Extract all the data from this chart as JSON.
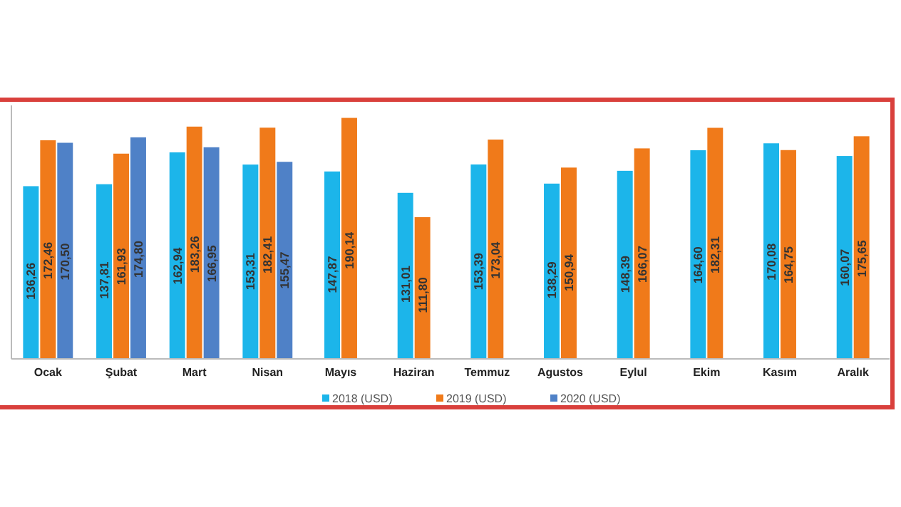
{
  "chart_data": {
    "type": "bar",
    "categories": [
      "Ocak",
      "Şubat",
      "Mart",
      "Nisan",
      "Mayıs",
      "Haziran",
      "Temmuz",
      "Agustos",
      "Eylul",
      "Ekim",
      "Kasım",
      "Aralık"
    ],
    "series": [
      {
        "name": "2018 (USD)",
        "color": "#1cb5ea",
        "values": [
          136.26,
          137.81,
          162.94,
          153.31,
          147.87,
          131.01,
          153.39,
          138.29,
          148.39,
          164.6,
          170.08,
          160.07
        ],
        "value_labels": [
          "136,26",
          "137,81",
          "162,94",
          "153,31",
          "147,87",
          "131,01",
          "153,39",
          "138,29",
          "148,39",
          "164,60",
          "170,08",
          "160,07"
        ]
      },
      {
        "name": "2019 (USD)",
        "color": "#f07a1a",
        "values": [
          172.46,
          161.93,
          183.26,
          182.41,
          190.14,
          111.8,
          173.04,
          150.94,
          166.07,
          182.31,
          164.75,
          175.65
        ],
        "value_labels": [
          "172,46",
          "161,93",
          "183,26",
          "182,41",
          "190,14",
          "111,80",
          "173,04",
          "150,94",
          "166,07",
          "182,31",
          "164,75",
          "175,65"
        ]
      },
      {
        "name": "2020 (USD)",
        "color": "#4f81c7",
        "values": [
          170.5,
          174.8,
          166.95,
          155.47,
          null,
          null,
          null,
          null,
          null,
          null,
          null,
          null
        ],
        "value_labels": [
          "170,50",
          "174,80",
          "166,95",
          "155,47",
          null,
          null,
          null,
          null,
          null,
          null,
          null,
          null
        ]
      }
    ],
    "ylim": [
      0,
      200
    ],
    "tick_labels": "x",
    "legend": "bottom"
  }
}
